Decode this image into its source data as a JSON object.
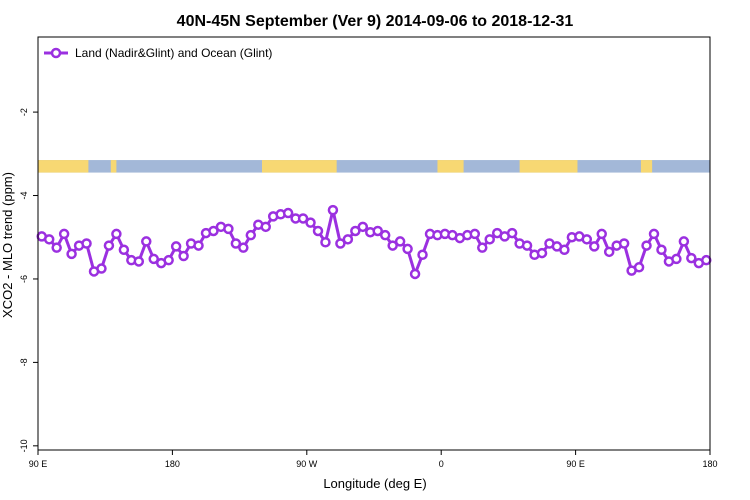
{
  "chart_data": {
    "type": "line",
    "title": "40N-45N September (Ver 9)   2014-09-06 to 2018-12-31",
    "xlabel": "Longitude (deg E)",
    "ylabel": "XCO2 - MLO trend (ppm)",
    "xlim": [
      90,
      450
    ],
    "ylim": [
      -10.1,
      -0.2
    ],
    "x_ticks": [
      {
        "value": 90,
        "label": "90 E"
      },
      {
        "value": 162,
        "label": "180"
      },
      {
        "value": 234,
        "label": "90 W"
      },
      {
        "value": 306,
        "label": "0"
      },
      {
        "value": 378,
        "label": "90 E"
      },
      {
        "value": 450,
        "label": "180"
      }
    ],
    "y_ticks": [
      {
        "value": -2,
        "label": "-2"
      },
      {
        "value": -4,
        "label": "-4"
      },
      {
        "value": -6,
        "label": "-6"
      },
      {
        "value": -8,
        "label": "-8"
      },
      {
        "value": -10,
        "label": "-10"
      }
    ],
    "legend": {
      "position": "top-left"
    },
    "colors": {
      "series": "#9b30e0",
      "land": "#f7d873",
      "ocean": "#a3b8d8"
    },
    "land_ocean_band": {
      "y_top": -3.15,
      "y_bottom": -3.45,
      "land_spans": [
        [
          90,
          117
        ],
        [
          129,
          132
        ],
        [
          210,
          250
        ],
        [
          304,
          318
        ],
        [
          348,
          379
        ],
        [
          413,
          419
        ]
      ]
    },
    "series": [
      {
        "name": "Land (Nadir&Glint) and Ocean (Glint)",
        "points": [
          [
            92,
            -4.98
          ],
          [
            96,
            -5.05
          ],
          [
            100,
            -5.25
          ],
          [
            104,
            -4.92
          ],
          [
            108,
            -5.4
          ],
          [
            112,
            -5.2
          ],
          [
            116,
            -5.15
          ],
          [
            120,
            -5.82
          ],
          [
            124,
            -5.75
          ],
          [
            128,
            -5.2
          ],
          [
            132,
            -4.92
          ],
          [
            136,
            -5.3
          ],
          [
            140,
            -5.55
          ],
          [
            144,
            -5.58
          ],
          [
            148,
            -5.1
          ],
          [
            152,
            -5.52
          ],
          [
            156,
            -5.62
          ],
          [
            160,
            -5.55
          ],
          [
            164,
            -5.22
          ],
          [
            168,
            -5.45
          ],
          [
            172,
            -5.15
          ],
          [
            176,
            -5.2
          ],
          [
            180,
            -4.9
          ],
          [
            184,
            -4.85
          ],
          [
            188,
            -4.75
          ],
          [
            192,
            -4.8
          ],
          [
            196,
            -5.15
          ],
          [
            200,
            -5.25
          ],
          [
            204,
            -4.95
          ],
          [
            208,
            -4.7
          ],
          [
            212,
            -4.75
          ],
          [
            216,
            -4.5
          ],
          [
            220,
            -4.45
          ],
          [
            224,
            -4.42
          ],
          [
            228,
            -4.55
          ],
          [
            232,
            -4.55
          ],
          [
            236,
            -4.65
          ],
          [
            240,
            -4.85
          ],
          [
            244,
            -5.12
          ],
          [
            248,
            -4.35
          ],
          [
            252,
            -5.15
          ],
          [
            256,
            -5.05
          ],
          [
            260,
            -4.85
          ],
          [
            264,
            -4.75
          ],
          [
            268,
            -4.88
          ],
          [
            272,
            -4.85
          ],
          [
            276,
            -4.95
          ],
          [
            280,
            -5.2
          ],
          [
            284,
            -5.1
          ],
          [
            288,
            -5.28
          ],
          [
            292,
            -5.88
          ],
          [
            296,
            -5.42
          ],
          [
            300,
            -4.92
          ],
          [
            304,
            -4.95
          ],
          [
            308,
            -4.92
          ],
          [
            312,
            -4.95
          ],
          [
            316,
            -5.02
          ],
          [
            320,
            -4.95
          ],
          [
            324,
            -4.92
          ],
          [
            328,
            -5.25
          ],
          [
            332,
            -5.05
          ],
          [
            336,
            -4.9
          ],
          [
            340,
            -4.98
          ],
          [
            344,
            -4.9
          ],
          [
            348,
            -5.15
          ],
          [
            352,
            -5.2
          ],
          [
            356,
            -5.42
          ],
          [
            360,
            -5.38
          ],
          [
            364,
            -5.15
          ],
          [
            368,
            -5.22
          ],
          [
            372,
            -5.3
          ],
          [
            376,
            -5.0
          ],
          [
            380,
            -4.98
          ],
          [
            384,
            -5.05
          ],
          [
            388,
            -5.22
          ],
          [
            392,
            -4.92
          ],
          [
            396,
            -5.35
          ],
          [
            400,
            -5.2
          ],
          [
            404,
            -5.15
          ],
          [
            408,
            -5.8
          ],
          [
            412,
            -5.72
          ],
          [
            416,
            -5.2
          ],
          [
            420,
            -4.92
          ],
          [
            424,
            -5.3
          ],
          [
            428,
            -5.58
          ],
          [
            432,
            -5.52
          ],
          [
            436,
            -5.1
          ],
          [
            440,
            -5.5
          ],
          [
            444,
            -5.62
          ],
          [
            448,
            -5.55
          ]
        ]
      }
    ]
  }
}
